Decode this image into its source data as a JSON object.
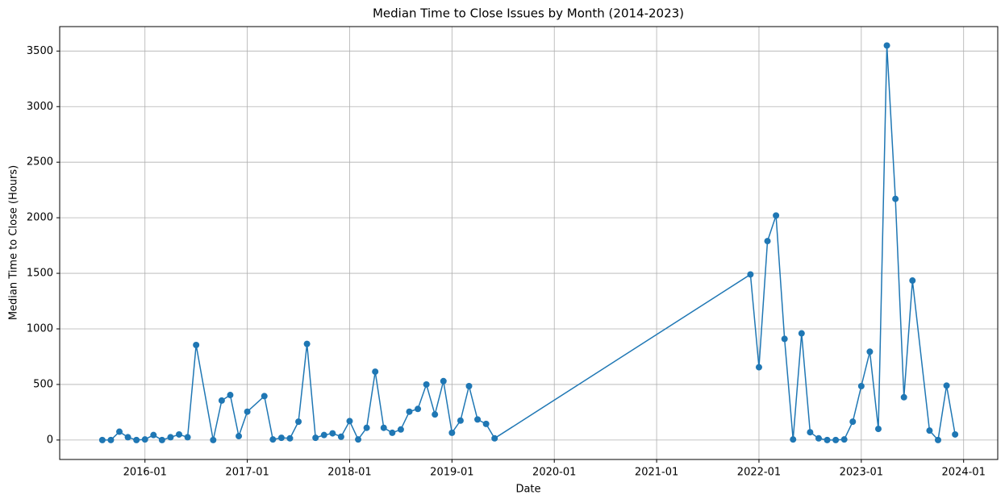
{
  "chart_data": {
    "type": "line",
    "title": "Median Time to Close Issues by Month (2014-2023)",
    "x_label": "Date",
    "y_label": "Median Time to Close (Hours)",
    "x": [
      "2015-08",
      "2015-09",
      "2015-10",
      "2015-11",
      "2015-12",
      "2016-01",
      "2016-02",
      "2016-03",
      "2016-04",
      "2016-05",
      "2016-06",
      "2016-07",
      "2016-09",
      "2016-10",
      "2016-11",
      "2016-12",
      "2017-01",
      "2017-03",
      "2017-04",
      "2017-05",
      "2017-06",
      "2017-07",
      "2017-08",
      "2017-09",
      "2017-10",
      "2017-11",
      "2017-12",
      "2018-01",
      "2018-02",
      "2018-03",
      "2018-04",
      "2018-05",
      "2018-06",
      "2018-07",
      "2018-08",
      "2018-09",
      "2018-10",
      "2018-11",
      "2018-12",
      "2019-01",
      "2019-02",
      "2019-03",
      "2019-04",
      "2019-05",
      "2019-06",
      "2021-12",
      "2022-01",
      "2022-02",
      "2022-03",
      "2022-04",
      "2022-05",
      "2022-06",
      "2022-07",
      "2022-08",
      "2022-09",
      "2022-10",
      "2022-11",
      "2022-12",
      "2023-01",
      "2023-02",
      "2023-03",
      "2023-04",
      "2023-05",
      "2023-06",
      "2023-07",
      "2023-09",
      "2023-10",
      "2023-11",
      "2023-12"
    ],
    "series": [
      {
        "name": "Median Time to Close",
        "color": "#1f77b4",
        "values": [
          0,
          0,
          75,
          25,
          0,
          5,
          45,
          0,
          25,
          50,
          25,
          855,
          0,
          355,
          405,
          35,
          255,
          395,
          5,
          20,
          15,
          165,
          865,
          20,
          45,
          60,
          30,
          170,
          5,
          110,
          615,
          110,
          65,
          95,
          255,
          280,
          500,
          230,
          530,
          65,
          175,
          485,
          185,
          145,
          15,
          1490,
          655,
          1790,
          2020,
          910,
          5,
          960,
          70,
          15,
          0,
          0,
          5,
          165,
          485,
          795,
          100,
          3550,
          2170,
          385,
          1435,
          85,
          0,
          490,
          50
        ]
      }
    ],
    "xlim": [
      "2015-03",
      "2024-05"
    ],
    "xticks": [
      "2016-01",
      "2017-01",
      "2018-01",
      "2019-01",
      "2020-01",
      "2021-01",
      "2022-01",
      "2023-01",
      "2024-01"
    ],
    "ylim": [
      -175,
      3720
    ],
    "yticks": [
      0,
      500,
      1000,
      1500,
      2000,
      2500,
      3000,
      3500
    ],
    "grid": true
  }
}
